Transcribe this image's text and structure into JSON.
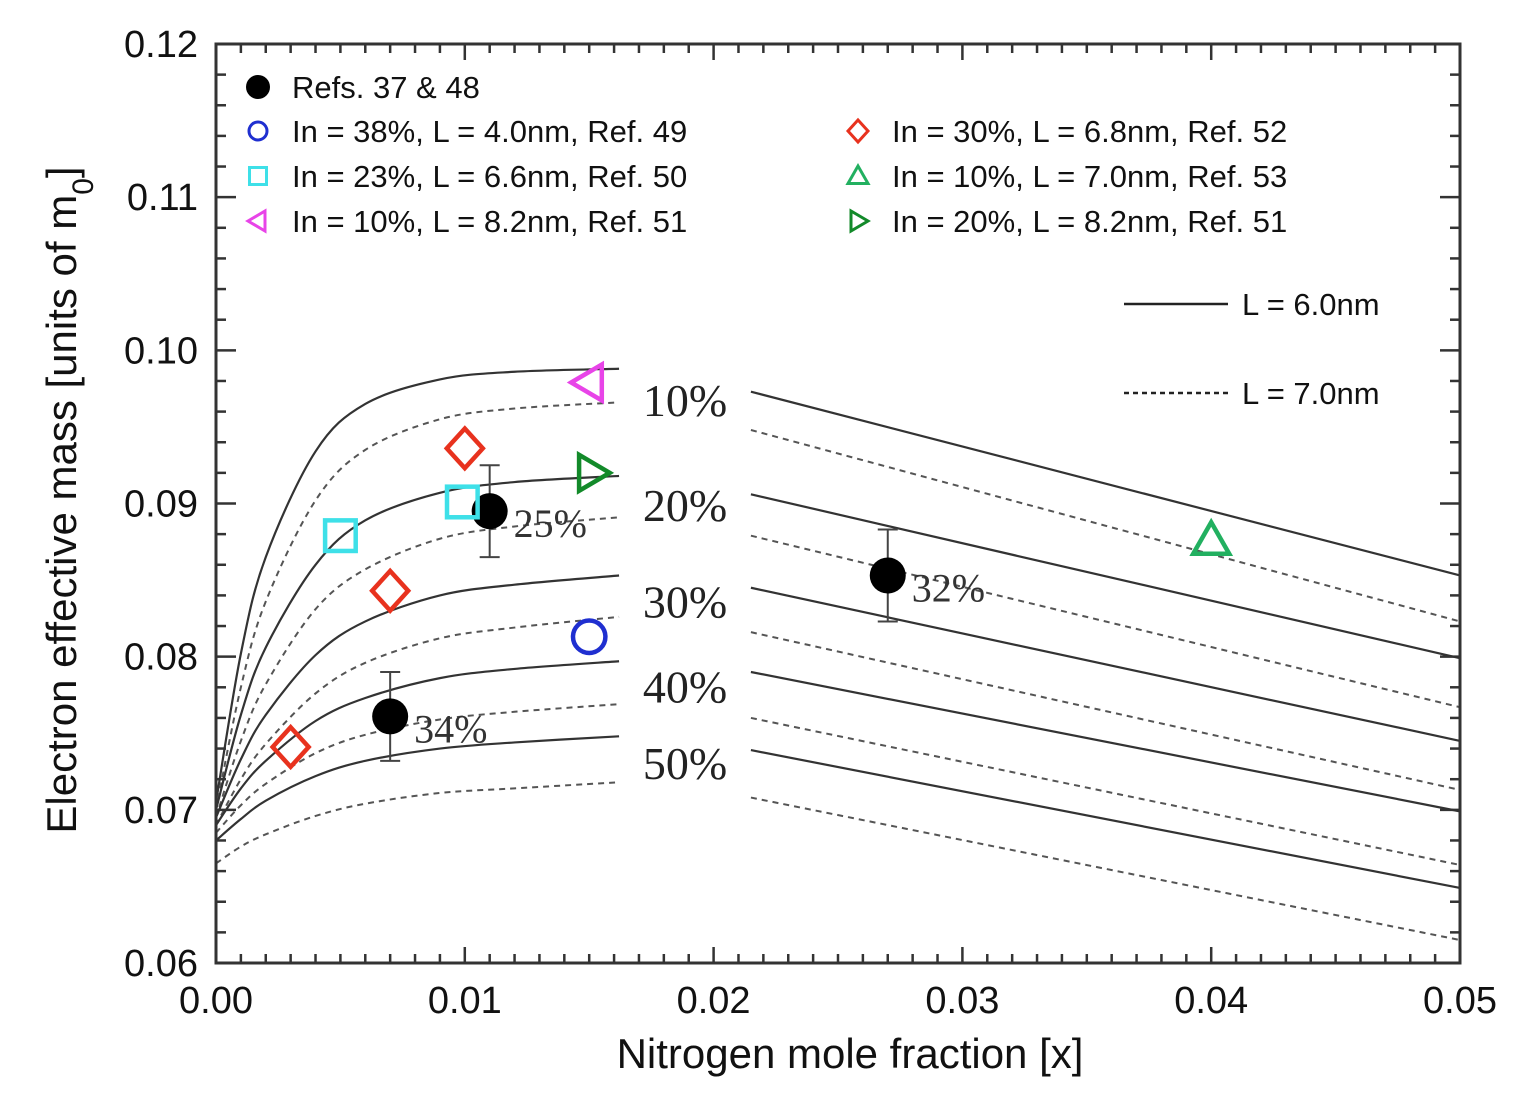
{
  "chart_data": {
    "type": "line",
    "title": "",
    "xlabel": "Nitrogen mole fraction [x]",
    "ylabel_main": "Electron effective mass [units of m",
    "ylabel_sub": "0",
    "ylabel_end": "]",
    "xlim": [
      0,
      0.05
    ],
    "ylim": [
      0.06,
      0.12
    ],
    "grid": false,
    "x_ticks": [
      "0.00",
      "0.01",
      "0.02",
      "0.03",
      "0.04",
      "0.05"
    ],
    "y_ticks": [
      "0.06",
      "0.07",
      "0.08",
      "0.09",
      "0.10",
      "0.11",
      "0.12"
    ],
    "line_legend": [
      {
        "label": "L = 6.0nm",
        "style": "solid"
      },
      {
        "label": "L = 7.0nm",
        "style": "dashed"
      }
    ],
    "curves": [
      {
        "label": "10%",
        "left": {
          "solid": [
            [
              0,
              0.0705
            ],
            [
              0.001,
              0.0802
            ],
            [
              0.002,
              0.0865
            ],
            [
              0.004,
              0.0934
            ],
            [
              0.006,
              0.0965
            ],
            [
              0.009,
              0.0981
            ],
            [
              0.012,
              0.0986
            ],
            [
              0.0162,
              0.0988
            ]
          ],
          "dashed": [
            [
              0,
              0.07
            ],
            [
              0.001,
              0.078
            ],
            [
              0.002,
              0.0836
            ],
            [
              0.004,
              0.0902
            ],
            [
              0.006,
              0.0935
            ],
            [
              0.009,
              0.0955
            ],
            [
              0.012,
              0.0962
            ],
            [
              0.0162,
              0.0966
            ]
          ]
        },
        "right": {
          "solid": [
            [
              0.0215,
              0.0973
            ],
            [
              0.05,
              0.0853
            ]
          ],
          "dashed": [
            [
              0.0215,
              0.0948
            ],
            [
              0.05,
              0.0823
            ]
          ]
        }
      },
      {
        "label": "20%",
        "left": {
          "solid": [
            [
              0,
              0.07
            ],
            [
              0.001,
              0.0762
            ],
            [
              0.002,
              0.0806
            ],
            [
              0.004,
              0.086
            ],
            [
              0.006,
              0.0889
            ],
            [
              0.009,
              0.0907
            ],
            [
              0.012,
              0.0914
            ],
            [
              0.0162,
              0.0918
            ]
          ],
          "dashed": [
            [
              0,
              0.0695
            ],
            [
              0.001,
              0.0745
            ],
            [
              0.002,
              0.0782
            ],
            [
              0.004,
              0.0831
            ],
            [
              0.006,
              0.0857
            ],
            [
              0.009,
              0.0877
            ],
            [
              0.012,
              0.0885
            ],
            [
              0.0162,
              0.0891
            ]
          ]
        },
        "right": {
          "solid": [
            [
              0.0215,
              0.0906
            ],
            [
              0.05,
              0.0799
            ]
          ],
          "dashed": [
            [
              0.0215,
              0.0879
            ],
            [
              0.05,
              0.0767
            ]
          ]
        }
      },
      {
        "label": "30%",
        "left": {
          "solid": [
            [
              0,
              0.0695
            ],
            [
              0.001,
              0.0733
            ],
            [
              0.002,
              0.0762
            ],
            [
              0.004,
              0.0801
            ],
            [
              0.006,
              0.0823
            ],
            [
              0.009,
              0.084
            ],
            [
              0.012,
              0.0847
            ],
            [
              0.0162,
              0.0853
            ]
          ],
          "dashed": [
            [
              0,
              0.069
            ],
            [
              0.001,
              0.072
            ],
            [
              0.002,
              0.0743
            ],
            [
              0.004,
              0.0776
            ],
            [
              0.006,
              0.0796
            ],
            [
              0.009,
              0.0812
            ],
            [
              0.012,
              0.0819
            ],
            [
              0.0162,
              0.0826
            ]
          ]
        },
        "right": {
          "solid": [
            [
              0.0215,
              0.0845
            ],
            [
              0.05,
              0.0745
            ]
          ],
          "dashed": [
            [
              0.0215,
              0.0816
            ],
            [
              0.05,
              0.0713
            ]
          ]
        }
      },
      {
        "label": "40%",
        "left": {
          "solid": [
            [
              0,
              0.069
            ],
            [
              0.001,
              0.0714
            ],
            [
              0.002,
              0.0732
            ],
            [
              0.004,
              0.0758
            ],
            [
              0.006,
              0.0773
            ],
            [
              0.009,
              0.0786
            ],
            [
              0.012,
              0.0792
            ],
            [
              0.0162,
              0.0797
            ]
          ],
          "dashed": [
            [
              0,
              0.0685
            ],
            [
              0.001,
              0.0703
            ],
            [
              0.002,
              0.0717
            ],
            [
              0.004,
              0.0737
            ],
            [
              0.006,
              0.0749
            ],
            [
              0.009,
              0.0759
            ],
            [
              0.012,
              0.0764
            ],
            [
              0.0162,
              0.0769
            ]
          ]
        },
        "right": {
          "solid": [
            [
              0.0215,
              0.079
            ],
            [
              0.05,
              0.0699
            ]
          ],
          "dashed": [
            [
              0.0215,
              0.076
            ],
            [
              0.05,
              0.0664
            ]
          ]
        }
      },
      {
        "label": "50%",
        "left": {
          "solid": [
            [
              0,
              0.068
            ],
            [
              0.001,
              0.0694
            ],
            [
              0.002,
              0.0706
            ],
            [
              0.004,
              0.0722
            ],
            [
              0.006,
              0.0732
            ],
            [
              0.009,
              0.074
            ],
            [
              0.012,
              0.0744
            ],
            [
              0.0162,
              0.0748
            ]
          ],
          "dashed": [
            [
              0,
              0.0665
            ],
            [
              0.001,
              0.0676
            ],
            [
              0.002,
              0.0684
            ],
            [
              0.004,
              0.0696
            ],
            [
              0.006,
              0.0704
            ],
            [
              0.009,
              0.0711
            ],
            [
              0.012,
              0.0714
            ],
            [
              0.0162,
              0.0718
            ]
          ]
        },
        "right": {
          "solid": [
            [
              0.0215,
              0.0739
            ],
            [
              0.05,
              0.0649
            ]
          ],
          "dashed": [
            [
              0.0215,
              0.0708
            ],
            [
              0.05,
              0.0615
            ]
          ]
        }
      }
    ],
    "series": [
      {
        "name": "Refs. 37 & 48",
        "marker": "filled-circle",
        "color": "#000000",
        "points": [
          {
            "x": 0.011,
            "y": 0.0895,
            "err": 0.003,
            "label": "25%"
          },
          {
            "x": 0.007,
            "y": 0.0761,
            "err": 0.0029,
            "label": "34%"
          },
          {
            "x": 0.027,
            "y": 0.0853,
            "err": 0.003,
            "label": "32%"
          }
        ]
      },
      {
        "name": "In = 38%, L = 4.0nm, Ref. 49",
        "marker": "circle",
        "color": "#1f2fd0",
        "points": [
          {
            "x": 0.015,
            "y": 0.0813
          }
        ]
      },
      {
        "name": "In = 23%, L = 6.6nm, Ref. 50",
        "marker": "square",
        "color": "#3ee0e8",
        "points": [
          {
            "x": 0.005,
            "y": 0.0879
          },
          {
            "x": 0.0099,
            "y": 0.0901
          }
        ]
      },
      {
        "name": "In = 10%, L = 8.2nm, Ref. 51",
        "marker": "triangle-left",
        "color": "#e844e8",
        "points": [
          {
            "x": 0.015,
            "y": 0.0979
          }
        ]
      },
      {
        "name": "In = 30%, L = 6.8nm, Ref. 52",
        "marker": "diamond",
        "color": "#e8321e",
        "points": [
          {
            "x": 0.003,
            "y": 0.0741
          },
          {
            "x": 0.007,
            "y": 0.0843
          },
          {
            "x": 0.01,
            "y": 0.0936
          }
        ]
      },
      {
        "name": "In = 10%, L = 7.0nm, Ref. 53",
        "marker": "triangle-up",
        "color": "#22b060",
        "points": [
          {
            "x": 0.04,
            "y": 0.0876
          }
        ]
      },
      {
        "name": "In = 20%, L = 8.2nm, Ref. 51",
        "marker": "triangle-right",
        "color": "#138a2a",
        "points": [
          {
            "x": 0.0151,
            "y": 0.092
          }
        ]
      }
    ],
    "legend_placement": "top-left"
  }
}
